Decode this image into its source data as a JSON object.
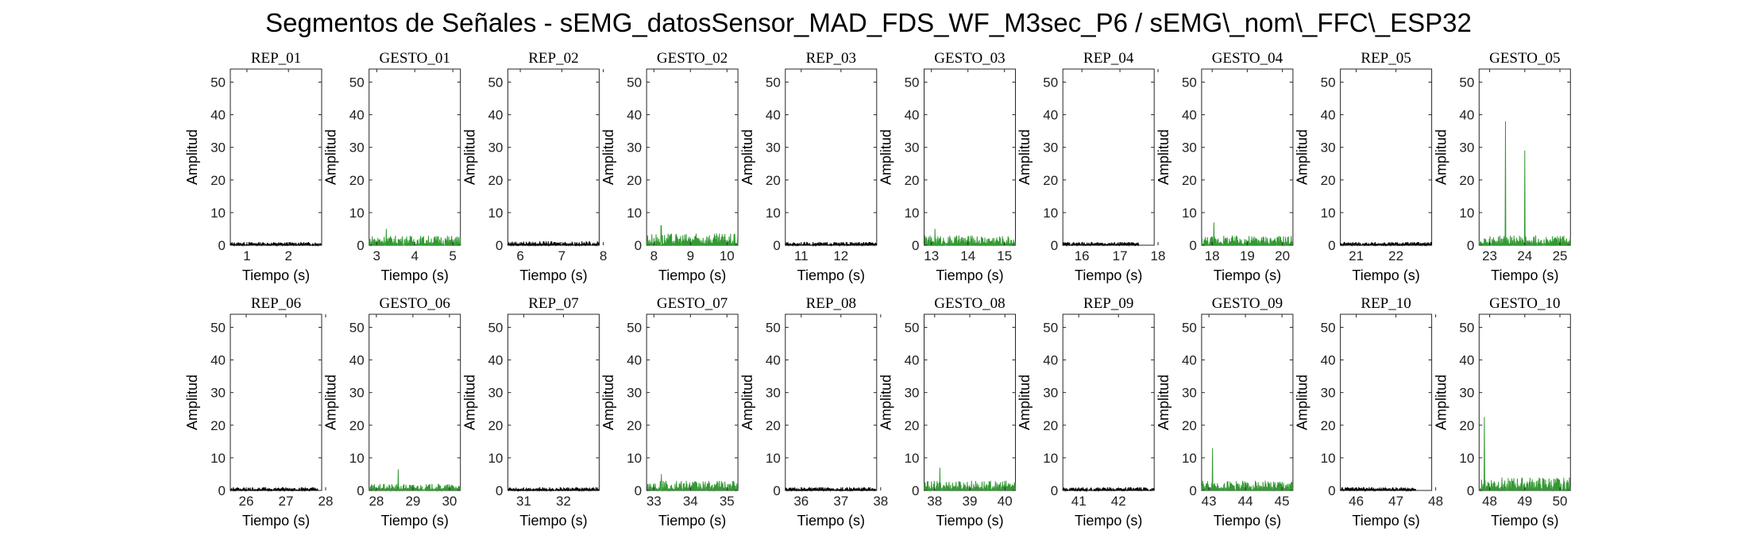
{
  "title": "Segmentos de Señales - sEMG_datosSensor_MAD_FDS_WF_M3sec_P6 / sEMG\\_nom\\_FFC\\_ESP32",
  "colors": {
    "rep": "#000000",
    "gesto": "#339933",
    "axis": "#262626"
  },
  "chart_data": [
    {
      "type": "line",
      "title": "REP_01",
      "xlabel": "Tiempo (s)",
      "ylabel": "Amplitud",
      "xlim": [
        0.6,
        2.8
      ],
      "ylim": [
        0,
        54
      ],
      "xticks": [
        "1",
        "2"
      ],
      "xtick_values": [
        1,
        2
      ],
      "yticks": [
        0,
        10,
        20,
        30,
        40,
        50
      ],
      "series": [
        {
          "values": [
            {
              "x": 0.6,
              "y": 0.5
            },
            {
              "x": 2.8,
              "y": 0.6
            }
          ],
          "peak": 1.0
        }
      ]
    },
    {
      "type": "line",
      "title": "GESTO_01",
      "xlabel": "Tiempo (s)",
      "ylabel": "Amplitud",
      "xlim": [
        2.8,
        5.2
      ],
      "ylim": [
        0,
        54
      ],
      "xticks": [
        "3",
        "4",
        "5"
      ],
      "xtick_values": [
        3,
        4,
        5
      ],
      "yticks": [
        0,
        10,
        20,
        30,
        40,
        50
      ],
      "series": [
        {
          "values": [
            {
              "x": 2.8,
              "y": 1.5
            },
            {
              "x": 5.2,
              "y": 2.0
            }
          ],
          "peak": 5.0,
          "peak_x": 3.25
        }
      ]
    },
    {
      "type": "line",
      "title": "REP_02",
      "xlabel": "Tiempo (s)",
      "ylabel": "Amplitud",
      "xlim": [
        5.7,
        7.9
      ],
      "ylim": [
        0,
        54
      ],
      "xticks": [
        "6",
        "7",
        "8"
      ],
      "xtick_values": [
        6,
        7,
        8
      ],
      "yticks": [
        0,
        10,
        20,
        30,
        40,
        50
      ],
      "series": [
        {
          "values": [
            {
              "x": 5.7,
              "y": 0.6
            },
            {
              "x": 7.9,
              "y": 0.6
            }
          ],
          "peak": 2.0
        }
      ]
    },
    {
      "type": "line",
      "title": "GESTO_02",
      "xlabel": "Tiempo (s)",
      "ylabel": "Amplitud",
      "xlim": [
        7.8,
        10.3
      ],
      "ylim": [
        0,
        54
      ],
      "xticks": [
        "8",
        "9",
        "10"
      ],
      "xtick_values": [
        8,
        9,
        10
      ],
      "yticks": [
        0,
        10,
        20,
        30,
        40,
        50
      ],
      "series": [
        {
          "values": [
            {
              "x": 7.8,
              "y": 1.8
            },
            {
              "x": 10.3,
              "y": 1.8
            }
          ],
          "peak": 6.0,
          "peak_x": 8.2
        }
      ]
    },
    {
      "type": "line",
      "title": "REP_03",
      "xlabel": "Tiempo (s)",
      "ylabel": "Amplitud",
      "xlim": [
        10.6,
        12.9
      ],
      "ylim": [
        0,
        54
      ],
      "xticks": [
        "11",
        "12"
      ],
      "xtick_values": [
        11,
        12
      ],
      "yticks": [
        0,
        10,
        20,
        30,
        40,
        50
      ],
      "series": [
        {
          "values": [
            {
              "x": 10.6,
              "y": 0.5
            },
            {
              "x": 12.9,
              "y": 0.5
            }
          ],
          "peak": 1.0
        }
      ]
    },
    {
      "type": "line",
      "title": "GESTO_03",
      "xlabel": "Tiempo (s)",
      "ylabel": "Amplitud",
      "xlim": [
        12.8,
        15.3
      ],
      "ylim": [
        0,
        54
      ],
      "xticks": [
        "13",
        "14",
        "15"
      ],
      "xtick_values": [
        13,
        14,
        15
      ],
      "yticks": [
        0,
        10,
        20,
        30,
        40,
        50
      ],
      "series": [
        {
          "values": [
            {
              "x": 12.8,
              "y": 1.5
            },
            {
              "x": 15.3,
              "y": 1.5
            }
          ],
          "peak": 5.0,
          "peak_x": 13.1
        }
      ]
    },
    {
      "type": "line",
      "title": "REP_04",
      "xlabel": "Tiempo (s)",
      "ylabel": "Amplitud",
      "xlim": [
        15.5,
        17.9
      ],
      "ylim": [
        0,
        54
      ],
      "xticks": [
        "16",
        "17",
        "18"
      ],
      "xtick_values": [
        16,
        17,
        18
      ],
      "yticks": [
        0,
        10,
        20,
        30,
        40,
        50
      ],
      "series": [
        {
          "values": [
            {
              "x": 15.5,
              "y": 0.5
            },
            {
              "x": 17.5,
              "y": 0.5
            }
          ],
          "peak": 1.2
        }
      ]
    },
    {
      "type": "line",
      "title": "GESTO_04",
      "xlabel": "Tiempo (s)",
      "ylabel": "Amplitud",
      "xlim": [
        17.7,
        20.3
      ],
      "ylim": [
        0,
        54
      ],
      "xticks": [
        "18",
        "19",
        "20"
      ],
      "xtick_values": [
        18,
        19,
        20
      ],
      "yticks": [
        0,
        10,
        20,
        30,
        40,
        50
      ],
      "series": [
        {
          "values": [
            {
              "x": 17.7,
              "y": 1.5
            },
            {
              "x": 20.3,
              "y": 1.5
            }
          ],
          "peak": 7.0,
          "peak_x": 18.05
        }
      ]
    },
    {
      "type": "line",
      "title": "REP_05",
      "xlabel": "Tiempo (s)",
      "ylabel": "Amplitud",
      "xlim": [
        20.6,
        22.9
      ],
      "ylim": [
        0,
        54
      ],
      "xticks": [
        "21",
        "22"
      ],
      "xtick_values": [
        21,
        22
      ],
      "yticks": [
        0,
        10,
        20,
        30,
        40,
        50
      ],
      "series": [
        {
          "values": [
            {
              "x": 20.6,
              "y": 0.5
            },
            {
              "x": 22.9,
              "y": 0.5
            }
          ],
          "peak": 1.0
        }
      ]
    },
    {
      "type": "line",
      "title": "GESTO_05",
      "xlabel": "Tiempo (s)",
      "ylabel": "Amplitud",
      "xlim": [
        22.7,
        25.3
      ],
      "ylim": [
        0,
        54
      ],
      "xticks": [
        "23",
        "24",
        "25"
      ],
      "xtick_values": [
        23,
        24,
        25
      ],
      "yticks": [
        0,
        10,
        20,
        30,
        40,
        50
      ],
      "series": [
        {
          "values": [
            {
              "x": 22.7,
              "y": 1.5
            },
            {
              "x": 25.3,
              "y": 2.5
            }
          ],
          "peak": 38.0,
          "peak_x": 23.45,
          "peak2": 29.0,
          "peak2_x": 24.0
        }
      ]
    },
    {
      "type": "line",
      "title": "REP_06",
      "xlabel": "Tiempo (s)",
      "ylabel": "Amplitud",
      "xlim": [
        25.6,
        27.9
      ],
      "ylim": [
        0,
        54
      ],
      "xticks": [
        "26",
        "27",
        "28"
      ],
      "xtick_values": [
        26,
        27,
        28
      ],
      "yticks": [
        0,
        10,
        20,
        30,
        40,
        50
      ],
      "series": [
        {
          "values": [
            {
              "x": 25.6,
              "y": 0.5
            },
            {
              "x": 27.8,
              "y": 0.5
            }
          ],
          "peak": 1.0
        }
      ]
    },
    {
      "type": "line",
      "title": "GESTO_06",
      "xlabel": "Tiempo (s)",
      "ylabel": "Amplitud",
      "xlim": [
        27.8,
        30.3
      ],
      "ylim": [
        0,
        54
      ],
      "xticks": [
        "28",
        "29",
        "30"
      ],
      "xtick_values": [
        28,
        29,
        30
      ],
      "yticks": [
        0,
        10,
        20,
        30,
        40,
        50
      ],
      "series": [
        {
          "values": [
            {
              "x": 27.8,
              "y": 1.0
            },
            {
              "x": 30.3,
              "y": 1.2
            }
          ],
          "peak": 6.5,
          "peak_x": 28.6
        }
      ]
    },
    {
      "type": "line",
      "title": "REP_07",
      "xlabel": "Tiempo (s)",
      "ylabel": "Amplitud",
      "xlim": [
        30.6,
        32.9
      ],
      "ylim": [
        0,
        54
      ],
      "xticks": [
        "31",
        "32"
      ],
      "xtick_values": [
        31,
        32
      ],
      "yticks": [
        0,
        10,
        20,
        30,
        40,
        50
      ],
      "series": [
        {
          "values": [
            {
              "x": 30.6,
              "y": 0.5
            },
            {
              "x": 32.9,
              "y": 0.5
            }
          ],
          "peak": 1.0
        }
      ]
    },
    {
      "type": "line",
      "title": "GESTO_07",
      "xlabel": "Tiempo (s)",
      "ylabel": "Amplitud",
      "xlim": [
        32.8,
        35.3
      ],
      "ylim": [
        0,
        54
      ],
      "xticks": [
        "33",
        "34",
        "35"
      ],
      "xtick_values": [
        33,
        34,
        35
      ],
      "yticks": [
        0,
        10,
        20,
        30,
        40,
        50
      ],
      "series": [
        {
          "values": [
            {
              "x": 32.8,
              "y": 1.5
            },
            {
              "x": 35.3,
              "y": 1.8
            }
          ],
          "peak": 5.0,
          "peak_x": 33.2
        }
      ]
    },
    {
      "type": "line",
      "title": "REP_08",
      "xlabel": "Tiempo (s)",
      "ylabel": "Amplitud",
      "xlim": [
        35.6,
        37.9
      ],
      "ylim": [
        0,
        54
      ],
      "xticks": [
        "36",
        "37",
        "38"
      ],
      "xtick_values": [
        36,
        37,
        38
      ],
      "yticks": [
        0,
        10,
        20,
        30,
        40,
        50
      ],
      "series": [
        {
          "values": [
            {
              "x": 35.6,
              "y": 0.5
            },
            {
              "x": 37.9,
              "y": 0.5
            }
          ],
          "peak": 1.0
        }
      ]
    },
    {
      "type": "line",
      "title": "GESTO_08",
      "xlabel": "Tiempo (s)",
      "ylabel": "Amplitud",
      "xlim": [
        37.7,
        40.3
      ],
      "ylim": [
        0,
        54
      ],
      "xticks": [
        "38",
        "39",
        "40"
      ],
      "xtick_values": [
        38,
        39,
        40
      ],
      "yticks": [
        0,
        10,
        20,
        30,
        40,
        50
      ],
      "series": [
        {
          "values": [
            {
              "x": 37.7,
              "y": 1.5
            },
            {
              "x": 40.3,
              "y": 1.5
            }
          ],
          "peak": 7.0,
          "peak_x": 38.15
        }
      ]
    },
    {
      "type": "line",
      "title": "REP_09",
      "xlabel": "Tiempo (s)",
      "ylabel": "Amplitud",
      "xlim": [
        40.6,
        42.9
      ],
      "ylim": [
        0,
        54
      ],
      "xticks": [
        "41",
        "42"
      ],
      "xtick_values": [
        41,
        42
      ],
      "yticks": [
        0,
        10,
        20,
        30,
        40,
        50
      ],
      "series": [
        {
          "values": [
            {
              "x": 40.6,
              "y": 0.5
            },
            {
              "x": 42.9,
              "y": 0.5
            }
          ],
          "peak": 1.0
        }
      ]
    },
    {
      "type": "line",
      "title": "GESTO_09",
      "xlabel": "Tiempo (s)",
      "ylabel": "Amplitud",
      "xlim": [
        42.8,
        45.3
      ],
      "ylim": [
        0,
        54
      ],
      "xticks": [
        "43",
        "44",
        "45"
      ],
      "xtick_values": [
        43,
        44,
        45
      ],
      "yticks": [
        0,
        10,
        20,
        30,
        40,
        50
      ],
      "series": [
        {
          "values": [
            {
              "x": 42.8,
              "y": 1.5
            },
            {
              "x": 45.3,
              "y": 1.8
            }
          ],
          "peak": 13.0,
          "peak_x": 43.1
        }
      ]
    },
    {
      "type": "line",
      "title": "REP_10",
      "xlabel": "Tiempo (s)",
      "ylabel": "Amplitud",
      "xlim": [
        45.6,
        47.9
      ],
      "ylim": [
        0,
        54
      ],
      "xticks": [
        "46",
        "47",
        "48"
      ],
      "xtick_values": [
        46,
        47,
        48
      ],
      "yticks": [
        0,
        10,
        20,
        30,
        40,
        50
      ],
      "series": [
        {
          "values": [
            {
              "x": 45.6,
              "y": 0.5
            },
            {
              "x": 47.5,
              "y": 0.5
            }
          ],
          "peak": 1.0
        }
      ]
    },
    {
      "type": "line",
      "title": "GESTO_10",
      "xlabel": "Tiempo (s)",
      "ylabel": "Amplitud",
      "xlim": [
        47.7,
        50.3
      ],
      "ylim": [
        0,
        54
      ],
      "xticks": [
        "48",
        "49",
        "50"
      ],
      "xtick_values": [
        48,
        49,
        50
      ],
      "yticks": [
        0,
        10,
        20,
        30,
        40,
        50
      ],
      "series": [
        {
          "values": [
            {
              "x": 47.7,
              "y": 2.0
            },
            {
              "x": 50.3,
              "y": 1.5
            }
          ],
          "peak": 22.5,
          "peak_x": 47.85
        }
      ]
    }
  ]
}
